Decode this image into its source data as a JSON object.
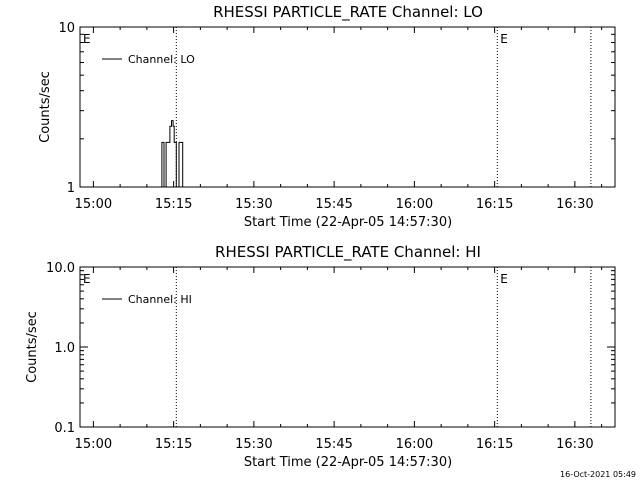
{
  "footer": {
    "timestamp": "16-Oct-2021 05:49"
  },
  "chart_data": [
    {
      "type": "line",
      "title": "RHESSI PARTICLE_RATE Channel: LO",
      "xlabel": "Start Time (22-Apr-05 14:57:30)",
      "ylabel": "Counts/sec",
      "x_ticks": [
        "15:00",
        "15:15",
        "15:30",
        "15:45",
        "16:00",
        "16:15",
        "16:30"
      ],
      "x_tick_minutes": [
        0,
        15,
        30,
        45,
        60,
        75,
        90
      ],
      "xlim_minutes_from_15:00": [
        -2.5,
        97.5
      ],
      "y_scale": "log",
      "ylim": [
        1,
        10
      ],
      "y_ticks": [
        "1",
        "10"
      ],
      "y_tick_values": [
        1,
        10
      ],
      "legend": {
        "position": "top-left",
        "entries": [
          "Channel: LO"
        ]
      },
      "event_markers": {
        "label": "E",
        "minutes_from_15:00": [
          -2.5,
          75.5
        ]
      },
      "dotted_lines_minutes_from_15:00": [
        15.5,
        75.5,
        93.0
      ],
      "grid": false,
      "series": [
        {
          "name": "Channel: LO",
          "points": [
            [
              12.8,
              1
            ],
            [
              12.8,
              1.9
            ],
            [
              13.2,
              1.9
            ],
            [
              13.2,
              1
            ],
            [
              13.6,
              1
            ],
            [
              13.6,
              1.9
            ],
            [
              14.0,
              1.9
            ],
            [
              14.0,
              1.9
            ],
            [
              14.3,
              1.9
            ],
            [
              14.3,
              2.4
            ],
            [
              14.6,
              2.4
            ],
            [
              14.6,
              2.6
            ],
            [
              14.9,
              2.6
            ],
            [
              14.9,
              2.4
            ],
            [
              15.1,
              2.4
            ],
            [
              15.1,
              1.9
            ],
            [
              15.5,
              1.9
            ],
            [
              15.5,
              1
            ],
            [
              16.0,
              1
            ],
            [
              16.0,
              1.9
            ],
            [
              16.7,
              1.9
            ],
            [
              16.7,
              1
            ]
          ]
        }
      ]
    },
    {
      "type": "line",
      "title": "RHESSI PARTICLE_RATE Channel: HI",
      "xlabel": "Start Time (22-Apr-05 14:57:30)",
      "ylabel": "Counts/sec",
      "x_ticks": [
        "15:00",
        "15:15",
        "15:30",
        "15:45",
        "16:00",
        "16:15",
        "16:30"
      ],
      "x_tick_minutes": [
        0,
        15,
        30,
        45,
        60,
        75,
        90
      ],
      "xlim_minutes_from_15:00": [
        -2.5,
        97.5
      ],
      "y_scale": "log",
      "ylim": [
        0.1,
        10
      ],
      "y_ticks": [
        "0.1",
        "1.0",
        "10.0"
      ],
      "y_tick_values": [
        0.1,
        1,
        10
      ],
      "legend": {
        "position": "top-left",
        "entries": [
          "Channel: HI"
        ]
      },
      "event_markers": {
        "label": "E",
        "minutes_from_15:00": [
          -2.5,
          75.5
        ]
      },
      "dotted_lines_minutes_from_15:00": [
        15.5,
        75.5,
        93.0
      ],
      "grid": false,
      "series": [
        {
          "name": "Channel: HI",
          "points": []
        }
      ]
    }
  ]
}
